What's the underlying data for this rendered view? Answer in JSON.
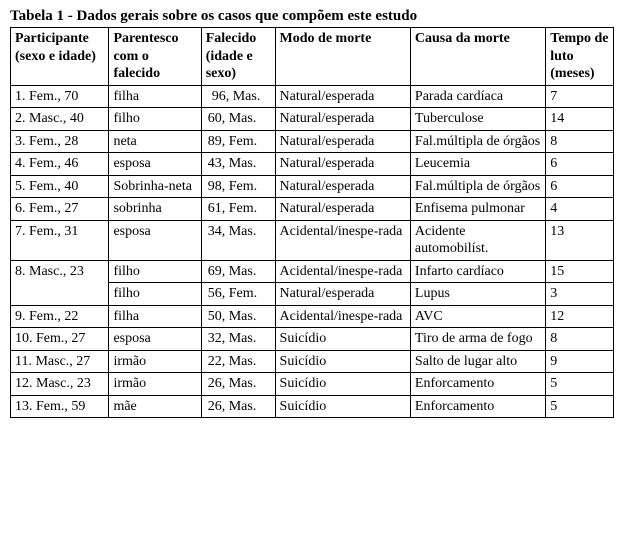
{
  "title": "Tabela 1 - Dados gerais sobre os casos que compõem este estudo",
  "headers": {
    "participant": "Participante (sexo e idade)",
    "kinship": "Parentesco com o falecido",
    "deceased": "Falecido (idade e sexo)",
    "mode": "Modo de morte",
    "cause": "Causa da morte",
    "time": "Tempo de luto (meses)"
  },
  "rows": [
    {
      "participant": "1.  Fem., 70",
      "kinship": "filha",
      "deceased": " 96, Mas.",
      "mode": "Natural/esperada",
      "cause": "Parada cardíaca",
      "time": "7"
    },
    {
      "participant": "2.  Masc., 40",
      "kinship": "filho",
      "deceased": "60, Mas.",
      "mode": "Natural/esperada",
      "cause": "Tuberculose",
      "time": "14"
    },
    {
      "participant": "3.  Fem., 28",
      "kinship": "neta",
      "deceased": "89, Fem.",
      "mode": "Natural/esperada",
      "cause": "Fal.múltipla de órgãos",
      "time": "8"
    },
    {
      "participant": "4.  Fem., 46",
      "kinship": "esposa",
      "deceased": "43, Mas.",
      "mode": "Natural/esperada",
      "cause": "Leucemia",
      "time": "6"
    },
    {
      "participant": "5.  Fem., 40",
      "kinship": "Sobrinha-neta",
      "deceased": "98, Fem.",
      "mode": "Natural/esperada",
      "cause": "Fal.múltipla de órgãos",
      "time": "6"
    },
    {
      "participant": "6.  Fem., 27",
      "kinship": "sobrinha",
      "deceased": "61, Fem.",
      "mode": "Natural/esperada",
      "cause": "Enfisema pulmonar",
      "time": "4"
    },
    {
      "participant": "7.  Fem., 31",
      "kinship": "esposa",
      "deceased": "34, Mas.",
      "mode": "Acidental/inespe-rada",
      "cause": "Acidente automobilíst.",
      "time": "13"
    },
    {
      "participant": "8.  Masc., 23",
      "kinship": "filho",
      "deceased": "69, Mas.",
      "mode": "Acidental/inespe-rada",
      "cause": "Infarto cardíaco",
      "time": "15"
    },
    {
      "participant": "",
      "kinship": "filho",
      "deceased": "56, Fem.",
      "mode": "Natural/esperada",
      "cause": "Lupus",
      "time": "3"
    },
    {
      "participant": "9.  Fem., 22",
      "kinship": "filha",
      "deceased": "50, Mas.",
      "mode": "Acidental/inespe-rada",
      "cause": "AVC",
      "time": "12"
    },
    {
      "participant": "10. Fem., 27",
      "kinship": "esposa",
      "deceased": "32, Mas.",
      "mode": "Suicídio",
      "cause": "Tiro  de  arma de fogo",
      "time": "8"
    },
    {
      "participant": "11. Masc., 27",
      "kinship": "irmão",
      "deceased": "22, Mas.",
      "mode": "Suicídio",
      "cause": "Salto  de  lugar alto",
      "time": "9"
    },
    {
      "participant": "12. Masc., 23",
      "kinship": "irmão",
      "deceased": "26, Mas.",
      "mode": "Suicídio",
      "cause": "Enforcamento",
      "time": "5"
    },
    {
      "participant": "13. Fem., 59",
      "kinship": "mãe",
      "deceased": "26, Mas.",
      "mode": "Suicídio",
      "cause": "Enforcamento",
      "time": "5"
    }
  ],
  "style": {
    "font_family": "Times New Roman",
    "title_fontsize": 15,
    "body_fontsize": 14,
    "border_color": "#000000",
    "background_color": "#ffffff",
    "text_color": "#000000",
    "col_widths_pct": [
      16,
      15,
      12,
      22,
      22,
      11
    ]
  }
}
